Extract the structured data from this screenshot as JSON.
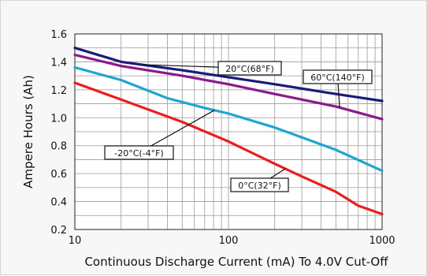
{
  "chart_data": {
    "type": "line",
    "xlabel": "Continuous Discharge Current (mA) To 4.0V Cut-Off",
    "ylabel": "Ampere Hours (Ah)",
    "xscale": "log",
    "xlim": [
      10,
      1000
    ],
    "ylim": [
      0.2,
      1.6
    ],
    "x_tick_labels": [
      "10",
      "100",
      "1000"
    ],
    "y_ticks": [
      0.2,
      0.4,
      0.6,
      0.8,
      1.0,
      1.2,
      1.4,
      1.6
    ],
    "y_tick_labels": [
      "0.2",
      "0.4",
      "0.6",
      "0.8",
      "1.0",
      "1.2",
      "1.4",
      "1.6"
    ],
    "grid": true,
    "legend": "none",
    "series": [
      {
        "name": "20°C(68°F)",
        "color": "#1a1a7a",
        "x": [
          10,
          20,
          50,
          100,
          200,
          500,
          1000
        ],
        "y": [
          1.5,
          1.4,
          1.34,
          1.29,
          1.24,
          1.17,
          1.12
        ]
      },
      {
        "name": "60°C(140°F)",
        "color": "#8c1a8c",
        "x": [
          10,
          20,
          50,
          100,
          200,
          500,
          1000
        ],
        "y": [
          1.45,
          1.37,
          1.3,
          1.24,
          1.17,
          1.08,
          0.99
        ]
      },
      {
        "name": "-20°C(-4°F)",
        "color": "#1ea6d0",
        "x": [
          10,
          20,
          40,
          70,
          100,
          200,
          500,
          1000
        ],
        "y": [
          1.36,
          1.27,
          1.14,
          1.07,
          1.03,
          0.93,
          0.77,
          0.62
        ]
      },
      {
        "name": "0°C(32°F)",
        "color": "#ee1c1c",
        "x": [
          10,
          20,
          50,
          100,
          200,
          300,
          500,
          700,
          1000
        ],
        "y": [
          1.25,
          1.13,
          0.97,
          0.83,
          0.67,
          0.58,
          0.47,
          0.37,
          0.31
        ]
      }
    ],
    "annotations": [
      {
        "text": "20°C(68°F)",
        "series": 0
      },
      {
        "text": "60°C(140°F)",
        "series": 1
      },
      {
        "text": "-20°C(-4°F)",
        "series": 2
      },
      {
        "text": "0°C(32°F)",
        "series": 3
      }
    ]
  }
}
